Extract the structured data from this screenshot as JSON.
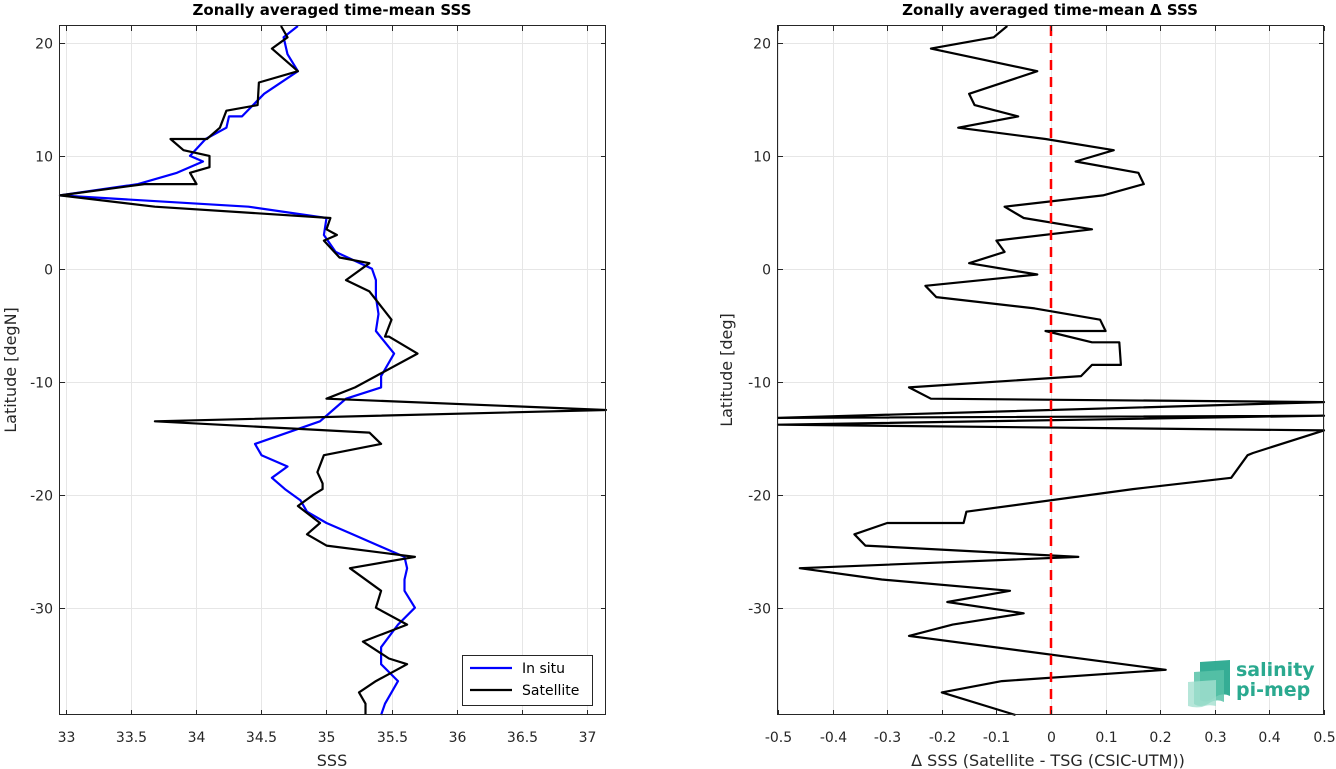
{
  "chart_data": [
    {
      "type": "line",
      "title": "Zonally averaged time-mean SSS",
      "xlabel": "SSS",
      "ylabel": "Latitude [degN]",
      "xlim": [
        32.95,
        37.15
      ],
      "ylim": [
        -39.5,
        21.5
      ],
      "xticks": [
        33,
        33.5,
        34,
        34.5,
        35,
        35.5,
        36,
        36.5,
        37
      ],
      "xtick_labels": [
        "33",
        "33.5",
        "34",
        "34.5",
        "35",
        "35.5",
        "36",
        "36.5",
        "37"
      ],
      "yticks": [
        20,
        10,
        0,
        -10,
        -20,
        -30
      ],
      "ytick_labels": [
        "20",
        "10",
        "0",
        "-10",
        "-20",
        "-30"
      ],
      "grid": true,
      "legend_position": "bottom-right",
      "series": [
        {
          "name": "In situ",
          "color": "#0000ff",
          "x": [
            34.78,
            34.67,
            34.7,
            34.78,
            34.52,
            34.35,
            34.25,
            34.23,
            34.07,
            33.95,
            34.05,
            33.85,
            33.55,
            32.95,
            34.4,
            35.0,
            34.98,
            35.07,
            35.35,
            35.38,
            35.38,
            35.4,
            35.38,
            35.52,
            35.42,
            35.42,
            35.15,
            35.05,
            34.95,
            34.45,
            34.5,
            34.7,
            34.58,
            34.68,
            34.8,
            34.85,
            35.0,
            35.2,
            35.4,
            35.6,
            35.62,
            35.6,
            35.6,
            35.68,
            35.55,
            35.42,
            35.42,
            35.55,
            35.5,
            35.45,
            35.42
          ],
          "y": [
            21.5,
            20.5,
            19.0,
            17.5,
            15.5,
            13.5,
            13.5,
            12.5,
            11.5,
            10.0,
            9.5,
            8.5,
            7.5,
            6.5,
            5.5,
            4.5,
            3.0,
            1.5,
            0.0,
            -1.0,
            -2.5,
            -4.0,
            -5.5,
            -7.5,
            -9.5,
            -10.5,
            -11.5,
            -12.5,
            -13.5,
            -15.5,
            -16.5,
            -17.5,
            -18.5,
            -19.5,
            -20.5,
            -21.5,
            -22.5,
            -23.5,
            -24.5,
            -25.5,
            -26.5,
            -27.5,
            -28.5,
            -30.0,
            -31.5,
            -33.5,
            -35.0,
            -36.5,
            -37.5,
            -38.5,
            -39.5
          ]
        },
        {
          "name": "Satellite",
          "color": "#000000",
          "x": [
            34.65,
            34.7,
            34.58,
            34.78,
            34.48,
            34.47,
            34.23,
            34.18,
            34.08,
            33.8,
            33.9,
            34.1,
            34.1,
            33.95,
            34.0,
            33.6,
            32.95,
            33.68,
            35.03,
            35.0,
            35.08,
            34.98,
            35.1,
            35.33,
            35.15,
            35.33,
            35.5,
            35.45,
            35.48,
            35.7,
            35.38,
            35.22,
            35.0,
            37.15,
            33.68,
            35.33,
            35.42,
            34.98,
            34.93,
            34.97,
            34.97,
            34.9,
            34.78,
            34.95,
            34.85,
            35.0,
            35.68,
            35.18,
            35.42,
            35.38,
            35.62,
            35.28,
            35.48,
            35.62,
            35.38,
            35.25,
            35.3,
            35.3
          ],
          "y": [
            21.5,
            20.5,
            19.5,
            17.5,
            16.5,
            14.5,
            14.0,
            12.5,
            11.5,
            11.5,
            10.5,
            10.0,
            9.0,
            8.5,
            7.5,
            7.5,
            6.5,
            5.5,
            4.5,
            3.5,
            3.0,
            2.5,
            1.0,
            0.5,
            -1.0,
            -2.0,
            -4.5,
            -6.0,
            -6.0,
            -7.5,
            -9.5,
            -10.5,
            -11.5,
            -12.5,
            -13.5,
            -14.5,
            -15.5,
            -16.5,
            -18.0,
            -19.0,
            -19.5,
            -20.0,
            -21.0,
            -22.5,
            -23.5,
            -24.5,
            -25.5,
            -26.5,
            -28.5,
            -30.0,
            -31.5,
            -33.0,
            -34.5,
            -35.0,
            -36.5,
            -37.5,
            -38.5,
            -39.5
          ]
        }
      ]
    },
    {
      "type": "line",
      "title": "Zonally averaged time-mean Δ SSS",
      "xlabel": "Δ SSS (Satellite - TSG (CSIC-UTM))",
      "ylabel": "Latitude [deg]",
      "xlim": [
        -0.5,
        0.5
      ],
      "ylim": [
        -39.5,
        21.5
      ],
      "xticks": [
        -0.5,
        -0.4,
        -0.3,
        -0.2,
        -0.1,
        0,
        0.1,
        0.2,
        0.3,
        0.4,
        0.5
      ],
      "xtick_labels": [
        "-0.5",
        "-0.4",
        "-0.3",
        "-0.2",
        "-0.1",
        "0",
        "0.1",
        "0.2",
        "0.3",
        "0.4",
        "0.5"
      ],
      "yticks": [
        20,
        10,
        0,
        -10,
        -20,
        -30
      ],
      "ytick_labels": [
        "20",
        "10",
        "0",
        "-10",
        "-20",
        "-30"
      ],
      "grid": true,
      "reference_line": {
        "x": 0,
        "color": "#ff0000",
        "style": "dashed"
      },
      "series": [
        {
          "color": "#000000",
          "x": [
            -0.08,
            -0.105,
            -0.22,
            -0.025,
            -0.15,
            -0.14,
            -0.06,
            -0.17,
            -0.01,
            0.115,
            0.045,
            0.16,
            0.17,
            0.095,
            -0.085,
            -0.05,
            0.075,
            -0.1,
            -0.085,
            -0.15,
            -0.025,
            -0.23,
            -0.21,
            -0.03,
            0.09,
            0.1,
            -0.01,
            0.075,
            0.125,
            0.128,
            0.075,
            0.055,
            -0.26,
            -0.22,
            0.5,
            -0.5,
            0.5,
            -0.5,
            0.5,
            0.37,
            0.36,
            0.33,
            0.15,
            -0.155,
            -0.16,
            -0.3,
            -0.36,
            -0.34,
            0.05,
            -0.46,
            -0.31,
            -0.075,
            -0.19,
            -0.05,
            -0.18,
            -0.26,
            0.21,
            -0.09,
            -0.2,
            -0.065
          ],
          "y": [
            21.5,
            20.5,
            19.5,
            17.5,
            15.5,
            14.5,
            13.5,
            12.5,
            11.5,
            10.5,
            9.5,
            8.5,
            7.5,
            6.5,
            5.5,
            4.5,
            3.5,
            2.5,
            1.5,
            0.5,
            -0.5,
            -1.5,
            -2.5,
            -3.5,
            -4.5,
            -5.5,
            -5.5,
            -6.5,
            -6.5,
            -8.5,
            -8.5,
            -9.5,
            -10.5,
            -11.5,
            -11.8,
            -13.2,
            -13.0,
            -13.8,
            -14.3,
            -16.3,
            -16.5,
            -18.5,
            -19.5,
            -21.5,
            -22.5,
            -22.5,
            -23.5,
            -24.5,
            -25.5,
            -26.5,
            -27.5,
            -28.5,
            -29.5,
            -30.5,
            -31.5,
            -32.5,
            -35.5,
            -36.5,
            -37.5,
            -39.5
          ]
        }
      ]
    }
  ],
  "logo": {
    "line1": "salinity",
    "line2": "pi-mep",
    "color": "#2aa98f"
  }
}
